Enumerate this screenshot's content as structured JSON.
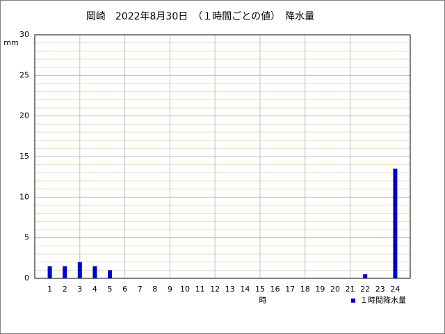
{
  "chart_data": {
    "type": "bar",
    "title": "岡崎　2022年8月30日　（１時間ごとの値）　降水量",
    "y_unit": "mm",
    "x_label": "時",
    "categories": [
      "1",
      "2",
      "3",
      "4",
      "5",
      "6",
      "7",
      "8",
      "9",
      "10",
      "11",
      "12",
      "13",
      "14",
      "15",
      "16",
      "17",
      "18",
      "19",
      "20",
      "21",
      "22",
      "23",
      "24"
    ],
    "series": [
      {
        "name": "１時間降水量",
        "color": "#0000cc",
        "values": [
          1.5,
          1.5,
          2,
          1.5,
          1,
          0,
          0,
          0,
          0,
          0,
          0,
          0,
          0,
          0,
          0,
          0,
          0,
          0,
          0,
          0,
          0,
          0.5,
          0,
          13.5
        ]
      }
    ],
    "ylim": [
      0,
      30
    ],
    "yticks": [
      0,
      5,
      10,
      15,
      20,
      25,
      30
    ],
    "minor_grid_step": 1,
    "x_grid_every": 3,
    "grid": true,
    "legend": "lower right"
  }
}
